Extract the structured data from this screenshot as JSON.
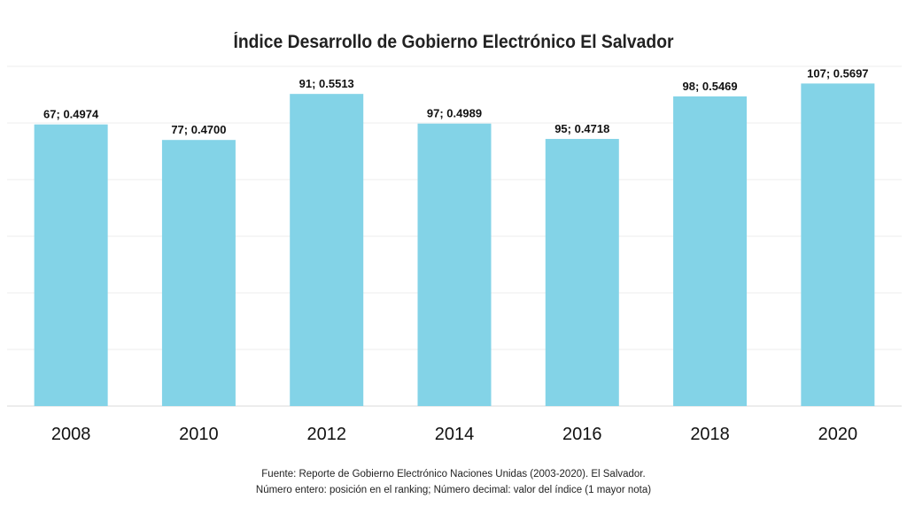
{
  "chart_data": {
    "type": "bar",
    "title": "Índice Desarrollo de Gobierno Electrónico El Salvador",
    "categories": [
      "2008",
      "2010",
      "2012",
      "2014",
      "2016",
      "2018",
      "2020"
    ],
    "values": [
      0.4974,
      0.47,
      0.5513,
      0.4989,
      0.4718,
      0.5469,
      0.5697
    ],
    "data_labels": [
      "67; 0.4974",
      "77; 0.4700",
      "91; 0.5513",
      "97; 0.4989",
      "95; 0.4718",
      "98; 0.5469",
      "107; 0.5697"
    ],
    "xlabel": "",
    "ylabel": "",
    "ylim": [
      0,
      0.6
    ],
    "grid": true,
    "bar_color": "#83d3e7"
  },
  "footer": {
    "line1": "Fuente: Reporte de Gobierno Electrónico Naciones Unidas (2003-2020).  El Salvador.",
    "line2": "Número entero: posición en el ranking; Número decimal: valor del índice (1 mayor nota)"
  }
}
